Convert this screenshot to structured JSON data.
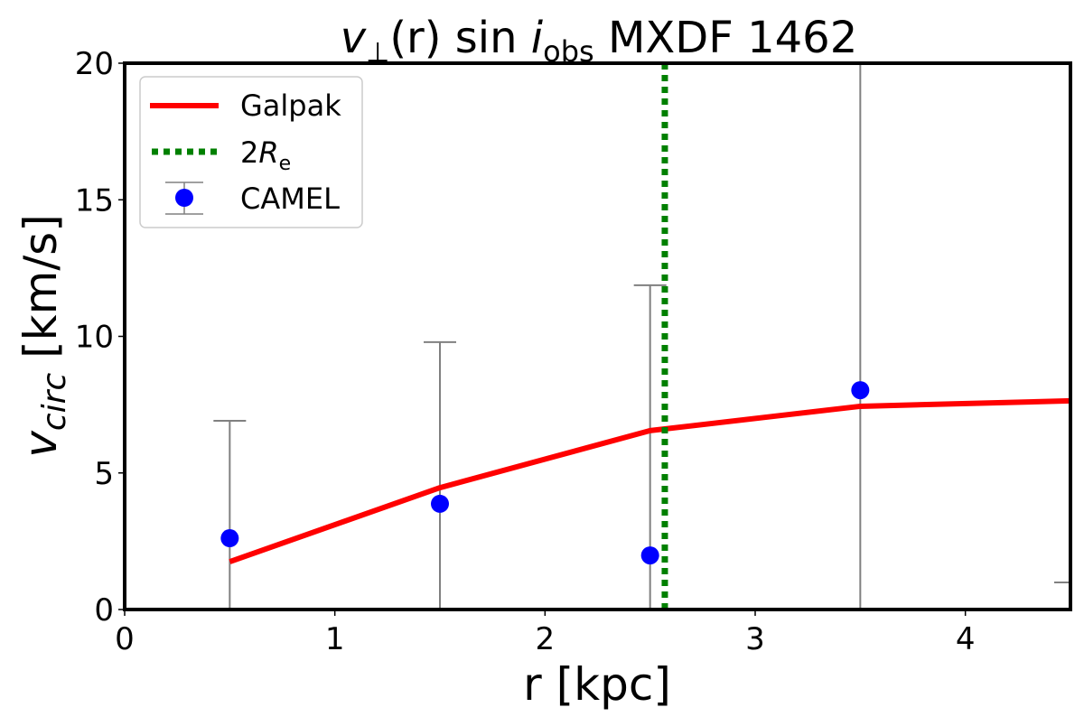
{
  "chart_data": {
    "type": "line",
    "title": {
      "v": "v",
      "perp": "⊥",
      "r": "(r)",
      "sin": " sin ",
      "i": "i",
      "obs": "obs",
      "rest": " MXDF 1462"
    },
    "xlabel": "r [kpc]",
    "ylabel": {
      "v": "v",
      "sub": "circ",
      "unit": " [km/s]"
    },
    "xlim": [
      0,
      4.5
    ],
    "ylim": [
      0,
      20
    ],
    "xticks": [
      "0",
      "1",
      "2",
      "3",
      "4"
    ],
    "yticks": [
      "0",
      "5",
      "10",
      "15",
      "20"
    ],
    "grid": false,
    "legend_placement": "top-left",
    "legend": [
      {
        "label": "Galpak",
        "style": "line",
        "color": "#ff0000"
      },
      {
        "label_main": "2",
        "label_italic": "R",
        "label_sub": "e",
        "style": "dotted",
        "color": "#008000"
      },
      {
        "label": "CAMEL",
        "style": "errorbar-marker",
        "color": "#0000ff"
      }
    ],
    "series": [
      {
        "name": "Galpak",
        "type": "line",
        "color": "#ff0000",
        "x": [
          0.5,
          1.5,
          2.5,
          3.5,
          4.5
        ],
        "y": [
          1.75,
          4.46,
          6.55,
          7.44,
          7.64
        ]
      },
      {
        "name": "CAMEL",
        "type": "errorbar",
        "color": "#0000ff",
        "errcolor": "#808080",
        "x": [
          0.5,
          1.5,
          2.5,
          3.5
        ],
        "y": [
          2.61,
          3.87,
          1.98,
          8.03
        ],
        "y_upper": [
          6.91,
          9.79,
          11.87,
          25
        ],
        "y_lower": [
          -2,
          -2,
          -2,
          -2
        ]
      }
    ],
    "extra_errorbar_cap": {
      "x": 4.5,
      "y": 0.99
    },
    "vline": {
      "name": "2Re",
      "x": 2.57,
      "color": "#008000"
    }
  }
}
